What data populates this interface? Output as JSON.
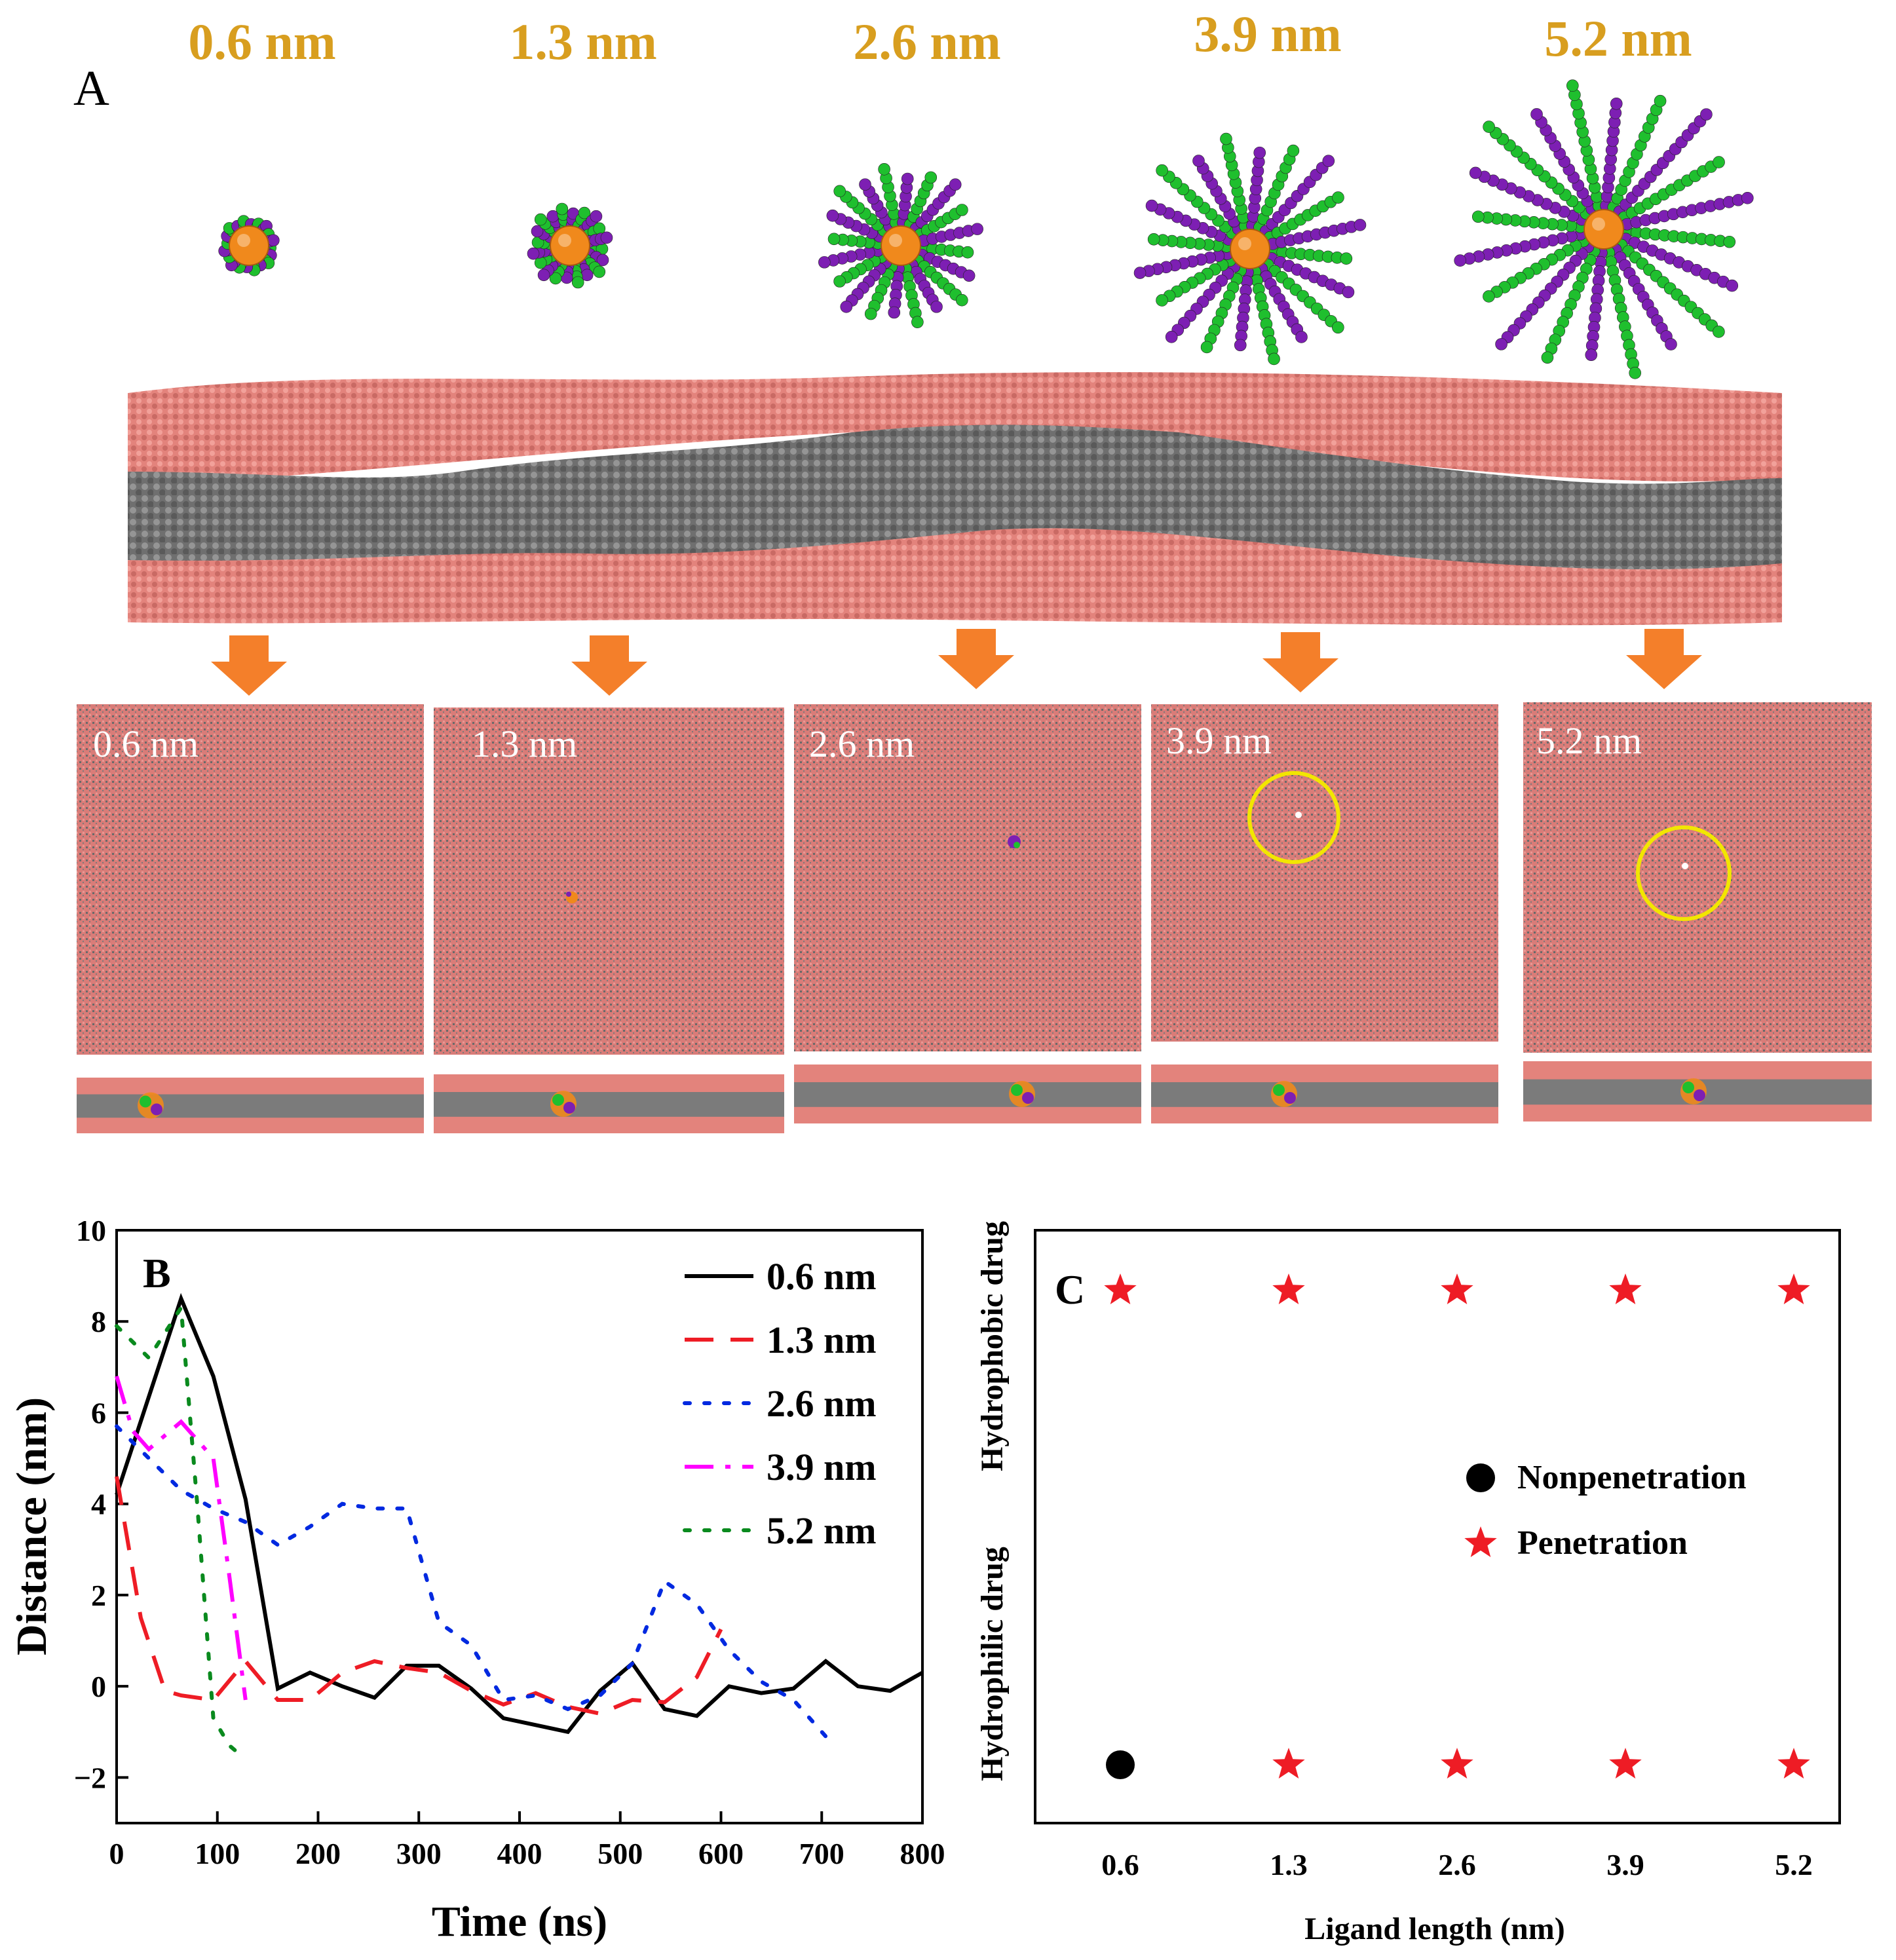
{
  "panel_a": {
    "label": "A",
    "sizes": [
      "0.6 nm",
      "1.3 nm",
      "2.6 nm",
      "3.9 nm",
      "5.2 nm"
    ],
    "colors": {
      "size_label": "#d89e1f",
      "core": "#f0891c",
      "ligand_hydrophobic": "#1fbf2e",
      "ligand_hydrophilic": "#7d1fb3",
      "headgroup": "#e3837c",
      "tail": "#7b7b7b",
      "arrow": "#f47f2a",
      "pore_circle": "#f2e600"
    }
  },
  "chart_data": [
    {
      "type": "line",
      "panel_label": "B",
      "xlabel": "Time (ns)",
      "ylabel": "Distance (nm)",
      "xlim": [
        0,
        800
      ],
      "ylim": [
        -3,
        10
      ],
      "xticks": [
        0,
        100,
        200,
        300,
        400,
        500,
        600,
        700,
        800
      ],
      "yticks": [
        -2,
        0,
        2,
        4,
        6,
        8,
        10
      ],
      "legend_position": "top-right",
      "series": [
        {
          "name": "0.6 nm",
          "color": "#000000",
          "dash": "solid",
          "x": [
            0,
            64,
            96,
            128,
            160,
            192,
            224,
            256,
            288,
            320,
            352,
            384,
            416,
            448,
            480,
            512,
            544,
            576,
            608,
            640,
            672,
            704,
            736,
            768,
            800
          ],
          "y": [
            4.2,
            8.5,
            6.8,
            4.1,
            -0.05,
            0.3,
            0.0,
            -0.25,
            0.45,
            0.45,
            -0.05,
            -0.7,
            -0.85,
            -1.0,
            -0.1,
            0.5,
            -0.5,
            -0.65,
            0.0,
            -0.15,
            -0.05,
            0.55,
            0.0,
            -0.1,
            0.3
          ]
        },
        {
          "name": "1.3 nm",
          "color": "#ee1c25",
          "dash": "dash",
          "x": [
            0,
            24,
            48,
            64,
            96,
            128,
            160,
            192,
            224,
            256,
            288,
            320,
            352,
            384,
            416,
            448,
            480,
            512,
            544,
            576,
            600
          ],
          "y": [
            4.6,
            1.5,
            -0.1,
            -0.2,
            -0.3,
            0.55,
            -0.3,
            -0.3,
            0.3,
            0.55,
            0.4,
            0.3,
            -0.1,
            -0.4,
            -0.15,
            -0.45,
            -0.6,
            -0.3,
            -0.35,
            0.2,
            1.25
          ]
        },
        {
          "name": "2.6 nm",
          "color": "#0029e0",
          "dash": "dot",
          "x": [
            0,
            32,
            64,
            96,
            128,
            160,
            192,
            224,
            256,
            288,
            320,
            352,
            384,
            416,
            448,
            480,
            512,
            544,
            576,
            608,
            640,
            672,
            704
          ],
          "y": [
            5.7,
            5.0,
            4.3,
            3.9,
            3.6,
            3.1,
            3.5,
            4.0,
            3.9,
            3.9,
            1.4,
            0.9,
            -0.3,
            -0.2,
            -0.5,
            -0.2,
            0.5,
            2.3,
            1.8,
            0.8,
            0.1,
            -0.3,
            -1.1
          ]
        },
        {
          "name": "3.9 nm",
          "color": "#ff00ff",
          "dash": "dashdot",
          "x": [
            0,
            16,
            32,
            64,
            96,
            112,
            128
          ],
          "y": [
            6.8,
            5.6,
            5.2,
            5.8,
            5.0,
            2.4,
            -0.3
          ]
        },
        {
          "name": "5.2 nm",
          "color": "#0a8a1e",
          "dash": "dot",
          "x": [
            0,
            32,
            64,
            80,
            96,
            112,
            128
          ],
          "y": [
            7.9,
            7.2,
            8.3,
            4.0,
            -0.7,
            -1.3,
            -1.6
          ]
        }
      ]
    },
    {
      "type": "scatter",
      "panel_label": "C",
      "xlabel": "Ligand length (nm)",
      "ylabel_bottom": "Hydrophilic drug",
      "ylabel_top": "Hydrophobic drug",
      "categories": [
        "0.6",
        "1.3",
        "2.6",
        "3.9",
        "5.2"
      ],
      "rows": [
        "Hydrophilic drug",
        "Hydrophobic drug"
      ],
      "legend_position": "center-right",
      "legend": [
        {
          "marker": "circle",
          "label": "Nonpenetration",
          "color": "#000000"
        },
        {
          "marker": "star",
          "label": "Penetration",
          "color": "#ee1c25"
        }
      ],
      "points": [
        {
          "x": "0.6",
          "row": "Hydrophobic drug",
          "marker": "star"
        },
        {
          "x": "1.3",
          "row": "Hydrophobic drug",
          "marker": "star"
        },
        {
          "x": "2.6",
          "row": "Hydrophobic drug",
          "marker": "star"
        },
        {
          "x": "3.9",
          "row": "Hydrophobic drug",
          "marker": "star"
        },
        {
          "x": "5.2",
          "row": "Hydrophobic drug",
          "marker": "star"
        },
        {
          "x": "0.6",
          "row": "Hydrophilic drug",
          "marker": "circle"
        },
        {
          "x": "1.3",
          "row": "Hydrophilic drug",
          "marker": "star"
        },
        {
          "x": "2.6",
          "row": "Hydrophilic drug",
          "marker": "star"
        },
        {
          "x": "3.9",
          "row": "Hydrophilic drug",
          "marker": "star"
        },
        {
          "x": "5.2",
          "row": "Hydrophilic drug",
          "marker": "star"
        }
      ]
    }
  ]
}
